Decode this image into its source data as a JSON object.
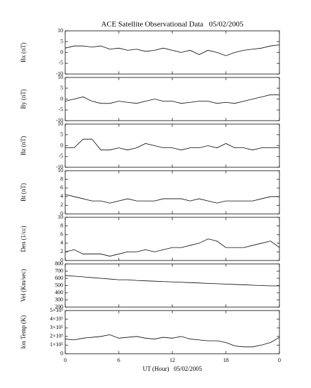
{
  "chart_data": [
    {
      "type": "line",
      "title": "ACE Satellite Observational Data   05/02/2005",
      "ylabel": "Bx (nT)",
      "color": "#000000",
      "x": [
        0,
        1,
        2,
        3,
        4,
        5,
        6,
        7,
        8,
        9,
        10,
        11,
        12,
        13,
        14,
        15,
        16,
        17,
        18,
        19,
        20,
        21,
        22,
        23,
        24
      ],
      "values": [
        2,
        3,
        3,
        2.5,
        3,
        1.5,
        2,
        1,
        1.5,
        0.5,
        1,
        2,
        1,
        0,
        1,
        -1,
        1,
        0,
        -1.5,
        0,
        1,
        1.5,
        2,
        3,
        3.5
      ],
      "xlim": [
        0,
        24
      ],
      "xticks": [
        0,
        6,
        12,
        18,
        {
          "value": 24,
          "label": "0"
        }
      ],
      "ylim": [
        -10,
        10
      ],
      "yticks": [
        -10,
        -5,
        0,
        5,
        10
      ]
    },
    {
      "type": "line",
      "ylabel": "By (nT)",
      "color": "#000000",
      "x": [
        0,
        1,
        2,
        3,
        4,
        5,
        6,
        7,
        8,
        9,
        10,
        11,
        12,
        13,
        14,
        15,
        16,
        17,
        18,
        19,
        20,
        21,
        22,
        23,
        24
      ],
      "values": [
        -1,
        0,
        1,
        -1,
        -2,
        -2,
        -1,
        -1.5,
        -2,
        -1,
        0,
        -1,
        -1,
        -2,
        -1.5,
        -1,
        -1,
        -2,
        -1.5,
        -2,
        -1,
        0,
        1,
        2,
        2
      ],
      "xlim": [
        0,
        24
      ],
      "xticks": [
        0,
        6,
        12,
        18,
        {
          "value": 24,
          "label": "0"
        }
      ],
      "ylim": [
        -10,
        10
      ],
      "yticks": [
        -10,
        -5,
        0,
        5,
        10
      ]
    },
    {
      "type": "line",
      "ylabel": "Bz (nT)",
      "color": "#000000",
      "x": [
        0,
        1,
        2,
        3,
        4,
        5,
        6,
        7,
        8,
        9,
        10,
        11,
        12,
        13,
        14,
        15,
        16,
        17,
        18,
        19,
        20,
        21,
        22,
        23,
        24
      ],
      "values": [
        -1,
        -1,
        3,
        3,
        -2,
        -2,
        -1,
        -2,
        -1,
        1,
        0,
        -1,
        -1,
        -2,
        -1,
        -1,
        0,
        -1,
        1,
        -1,
        -1,
        -2,
        -1,
        -1,
        -1
      ],
      "xlim": [
        0,
        24
      ],
      "xticks": [
        0,
        6,
        12,
        18,
        {
          "value": 24,
          "label": "0"
        }
      ],
      "ylim": [
        -10,
        10
      ],
      "yticks": [
        -10,
        -5,
        0,
        5,
        10
      ]
    },
    {
      "type": "line",
      "ylabel": "Bt (nT)",
      "color": "#000000",
      "x": [
        0,
        1,
        2,
        3,
        4,
        5,
        6,
        7,
        8,
        9,
        10,
        11,
        12,
        13,
        14,
        15,
        16,
        17,
        18,
        19,
        20,
        21,
        22,
        23,
        24
      ],
      "values": [
        4.5,
        4,
        3.5,
        3,
        3,
        2.5,
        3,
        3.5,
        3,
        3,
        3,
        3.5,
        3.5,
        3.5,
        3,
        3.5,
        3,
        2.5,
        3,
        3,
        3,
        3,
        3.5,
        4,
        4
      ],
      "xlim": [
        0,
        24
      ],
      "xticks": [
        0,
        6,
        12,
        18,
        {
          "value": 24,
          "label": "0"
        }
      ],
      "ylim": [
        0,
        10
      ],
      "yticks": [
        0,
        2,
        4,
        6,
        8,
        10
      ]
    },
    {
      "type": "line",
      "ylabel": "Den (1/cc)",
      "color": "#000000",
      "x": [
        0,
        1,
        2,
        3,
        4,
        5,
        6,
        7,
        8,
        9,
        10,
        11,
        12,
        13,
        14,
        15,
        16,
        17,
        18,
        19,
        20,
        21,
        22,
        23,
        24
      ],
      "values": [
        2,
        2.5,
        1.5,
        1.5,
        1.5,
        1,
        1.5,
        2,
        2,
        2.5,
        2,
        2.5,
        3,
        3,
        3.5,
        4,
        5,
        4.5,
        3,
        3,
        3,
        3.5,
        4,
        4.5,
        3
      ],
      "xlim": [
        0,
        24
      ],
      "xticks": [
        0,
        6,
        12,
        18,
        {
          "value": 24,
          "label": "0"
        }
      ],
      "ylim": [
        0,
        10
      ],
      "yticks": [
        0,
        2,
        4,
        6,
        8,
        10
      ]
    },
    {
      "type": "line",
      "ylabel": "Vel (Km/sec)",
      "color": "#000000",
      "x": [
        0,
        1,
        2,
        3,
        4,
        5,
        6,
        7,
        8,
        9,
        10,
        11,
        12,
        13,
        14,
        15,
        16,
        17,
        18,
        19,
        20,
        21,
        22,
        23,
        24
      ],
      "values": [
        640,
        630,
        620,
        610,
        600,
        590,
        580,
        580,
        570,
        565,
        560,
        555,
        550,
        545,
        540,
        535,
        530,
        525,
        520,
        515,
        510,
        505,
        500,
        495,
        495
      ],
      "xlim": [
        0,
        24
      ],
      "xticks": [
        0,
        6,
        12,
        18,
        {
          "value": 24,
          "label": "0"
        }
      ],
      "ylim": [
        200,
        800
      ],
      "yticks": [
        200,
        300,
        400,
        500,
        600,
        700,
        800
      ]
    },
    {
      "type": "line",
      "ylabel": "Ion Temp (K)",
      "xlabel": "UT (Hour)   05/02/2005",
      "color": "#000000",
      "x": [
        0,
        1,
        2,
        3,
        4,
        5,
        6,
        7,
        8,
        9,
        10,
        11,
        12,
        13,
        14,
        15,
        16,
        17,
        18,
        19,
        20,
        21,
        22,
        23,
        24
      ],
      "values": [
        170000,
        160000,
        180000,
        190000,
        200000,
        220000,
        180000,
        190000,
        200000,
        180000,
        170000,
        190000,
        180000,
        200000,
        170000,
        160000,
        150000,
        150000,
        130000,
        90000,
        80000,
        80000,
        100000,
        130000,
        190000
      ],
      "xlim": [
        0,
        24
      ],
      "xticks": [
        0,
        6,
        12,
        18,
        {
          "value": 24,
          "label": "0"
        }
      ],
      "ylim": [
        0,
        500000
      ],
      "yticks": [
        0,
        {
          "value": 100000,
          "label": "1×10⁵"
        },
        {
          "value": 200000,
          "label": "2×10⁵"
        },
        {
          "value": 300000,
          "label": "3×10⁵"
        },
        {
          "value": 400000,
          "label": "4×10⁵"
        },
        {
          "value": 500000,
          "label": "5×10⁵"
        }
      ]
    }
  ]
}
